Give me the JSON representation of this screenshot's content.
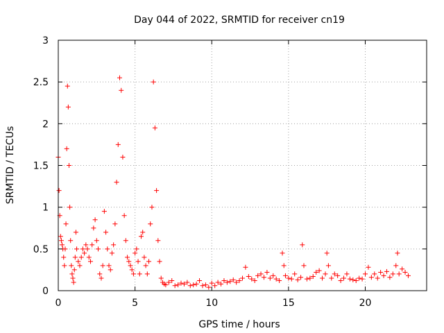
{
  "chart_data": {
    "type": "scatter",
    "title": "Day 044 of 2022, SRMTID for receiver cn19",
    "xlabel": "GPS time / hours",
    "ylabel": "SRMTID / TECUs",
    "xlim": [
      0,
      24
    ],
    "ylim": [
      0,
      3
    ],
    "xticks": [
      0,
      5,
      10,
      15,
      20
    ],
    "xtick_labels": [
      "0",
      "5",
      "10",
      "15",
      "20"
    ],
    "yticks": [
      0,
      0.5,
      1,
      1.5,
      2,
      2.5,
      3
    ],
    "ytick_labels": [
      "0",
      "0.5",
      "1",
      "1.5",
      "2",
      "2.5",
      "3"
    ],
    "grid": true,
    "marker": "+",
    "color": "#ff0000",
    "series": [
      {
        "name": "SRMTID",
        "x": [
          0.0,
          0.05,
          0.1,
          0.15,
          0.2,
          0.25,
          0.3,
          0.35,
          0.4,
          0.45,
          0.5,
          0.55,
          0.6,
          0.65,
          0.7,
          0.75,
          0.8,
          0.85,
          0.9,
          0.95,
          1.0,
          1.05,
          1.1,
          1.15,
          1.2,
          1.3,
          1.4,
          1.5,
          1.6,
          1.7,
          1.8,
          1.9,
          2.0,
          2.1,
          2.2,
          2.3,
          2.4,
          2.5,
          2.6,
          2.7,
          2.8,
          2.9,
          3.0,
          3.1,
          3.2,
          3.3,
          3.4,
          3.5,
          3.6,
          3.7,
          3.8,
          3.9,
          4.0,
          4.1,
          4.2,
          4.3,
          4.4,
          4.5,
          4.6,
          4.7,
          4.8,
          4.9,
          5.0,
          5.1,
          5.2,
          5.3,
          5.4,
          5.5,
          5.6,
          5.7,
          5.8,
          5.9,
          6.0,
          6.1,
          6.2,
          6.3,
          6.4,
          6.5,
          6.6,
          6.7,
          6.8,
          6.9,
          7.0,
          7.2,
          7.4,
          7.6,
          7.8,
          8.0,
          8.2,
          8.4,
          8.6,
          8.8,
          9.0,
          9.2,
          9.4,
          9.6,
          9.8,
          10.0,
          10.2,
          10.4,
          10.6,
          10.8,
          11.0,
          11.2,
          11.4,
          11.6,
          11.8,
          12.0,
          12.2,
          12.4,
          12.6,
          12.8,
          13.0,
          13.2,
          13.4,
          13.6,
          13.8,
          14.0,
          14.2,
          14.4,
          14.6,
          14.7,
          14.8,
          15.0,
          15.2,
          15.4,
          15.6,
          15.8,
          15.9,
          16.0,
          16.2,
          16.4,
          16.6,
          16.8,
          17.0,
          17.2,
          17.4,
          17.5,
          17.6,
          17.8,
          18.0,
          18.2,
          18.4,
          18.6,
          18.8,
          19.0,
          19.2,
          19.4,
          19.6,
          19.8,
          20.0,
          20.2,
          20.4,
          20.6,
          20.8,
          21.0,
          21.2,
          21.4,
          21.6,
          21.8,
          22.0,
          22.1,
          22.2,
          22.4,
          22.6,
          22.8
        ],
        "y": [
          1.6,
          1.2,
          0.9,
          0.65,
          0.6,
          0.55,
          0.5,
          0.4,
          0.3,
          0.5,
          0.8,
          1.7,
          2.45,
          2.2,
          1.5,
          1.0,
          0.6,
          0.3,
          0.2,
          0.15,
          0.1,
          0.25,
          0.4,
          0.7,
          0.5,
          0.35,
          0.3,
          0.4,
          0.5,
          0.45,
          0.55,
          0.5,
          0.4,
          0.35,
          0.55,
          0.75,
          0.85,
          0.6,
          0.5,
          0.2,
          0.15,
          0.3,
          0.95,
          0.7,
          0.5,
          0.3,
          0.25,
          0.45,
          0.55,
          0.8,
          1.3,
          1.75,
          2.55,
          2.4,
          1.6,
          0.9,
          0.6,
          0.4,
          0.35,
          0.3,
          0.25,
          0.2,
          0.45,
          0.5,
          0.35,
          0.2,
          0.65,
          0.7,
          0.4,
          0.3,
          0.2,
          0.35,
          0.8,
          1.0,
          2.5,
          1.95,
          1.2,
          0.6,
          0.35,
          0.15,
          0.1,
          0.08,
          0.07,
          0.1,
          0.12,
          0.06,
          0.07,
          0.09,
          0.08,
          0.1,
          0.06,
          0.07,
          0.08,
          0.12,
          0.06,
          0.07,
          0.04,
          0.09,
          0.06,
          0.1,
          0.08,
          0.12,
          0.1,
          0.11,
          0.13,
          0.1,
          0.12,
          0.15,
          0.28,
          0.17,
          0.14,
          0.12,
          0.18,
          0.2,
          0.16,
          0.22,
          0.15,
          0.18,
          0.14,
          0.12,
          0.45,
          0.3,
          0.18,
          0.15,
          0.14,
          0.2,
          0.13,
          0.16,
          0.55,
          0.3,
          0.14,
          0.15,
          0.17,
          0.22,
          0.24,
          0.15,
          0.2,
          0.45,
          0.3,
          0.15,
          0.2,
          0.18,
          0.12,
          0.15,
          0.2,
          0.14,
          0.13,
          0.12,
          0.15,
          0.14,
          0.2,
          0.28,
          0.16,
          0.2,
          0.15,
          0.22,
          0.18,
          0.23,
          0.16,
          0.2,
          0.3,
          0.45,
          0.2,
          0.26,
          0.22,
          0.18
        ]
      }
    ]
  }
}
